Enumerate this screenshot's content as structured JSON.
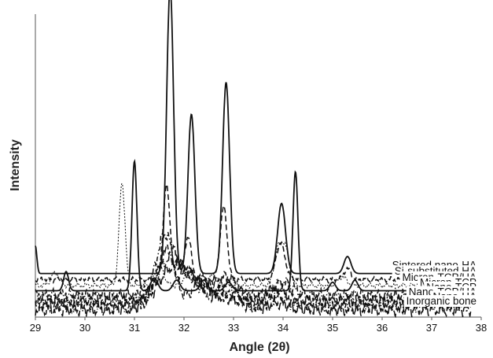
{
  "chart_data": {
    "type": "line",
    "title": "",
    "xlabel": "Angle (2θ)",
    "ylabel": "Intensity",
    "xlim": [
      29,
      38
    ],
    "x_ticks": [
      "29",
      "30",
      "31",
      "32",
      "33",
      "34",
      "35",
      "36",
      "37",
      "38"
    ],
    "y_ticks_shown": false,
    "y_units": "arbitrary (stacked, offset traces)",
    "grid": false,
    "legend": "none (labels printed on traces)",
    "series": [
      {
        "name": "Sintered nano-HA",
        "style": "solid",
        "baseline": 1.68,
        "peaks": [
          [
            29.0,
            1.3,
            0.03
          ],
          [
            31.72,
            13.5,
            0.07
          ],
          [
            32.15,
            7.5,
            0.07
          ],
          [
            32.85,
            9.0,
            0.07
          ],
          [
            33.97,
            3.3,
            0.08
          ],
          [
            35.3,
            0.8,
            0.07
          ]
        ]
      },
      {
        "name": "Si-substituted HA",
        "style": "dashed",
        "baseline": 1.4,
        "peaks": [
          [
            31.65,
            4.4,
            0.07
          ],
          [
            32.08,
            2.0,
            0.07
          ],
          [
            32.8,
            3.4,
            0.07
          ],
          [
            33.95,
            1.7,
            0.09
          ],
          [
            35.3,
            0.5,
            0.07
          ]
        ]
      },
      {
        "name": "Micron-TCP/HA",
        "style": "dotted",
        "baseline": 1.12,
        "peaks": [
          [
            29.4,
            0.6,
            0.08
          ],
          [
            30.75,
            4.8,
            0.06
          ],
          [
            31.5,
            0.9,
            0.09
          ],
          [
            32.1,
            0.7,
            0.09
          ],
          [
            32.6,
            0.5,
            0.09
          ],
          [
            33.9,
            1.6,
            0.08
          ],
          [
            34.05,
            1.6,
            0.08
          ],
          [
            35.2,
            0.4,
            0.09
          ],
          [
            36.9,
            0.5,
            0.09
          ],
          [
            37.4,
            0.3,
            0.09
          ]
        ]
      },
      {
        "name": "Micron-TCP",
        "style": "solid",
        "baseline": 0.87,
        "peaks": [
          [
            29.62,
            0.9,
            0.05
          ],
          [
            31.0,
            6.1,
            0.05
          ],
          [
            31.4,
            0.6,
            0.07
          ],
          [
            31.85,
            0.5,
            0.07
          ],
          [
            32.4,
            0.5,
            0.07
          ],
          [
            32.9,
            0.4,
            0.07
          ],
          [
            34.25,
            5.6,
            0.05
          ],
          [
            35.0,
            0.4,
            0.06
          ],
          [
            35.45,
            0.5,
            0.06
          ],
          [
            37.1,
            0.3,
            0.06
          ]
        ]
      },
      {
        "name": "Nano-TCP",
        "style": "dash-dot",
        "baseline": 0.64,
        "peaks": [
          [
            31.55,
            2.0,
            0.15
          ],
          [
            31.7,
            1.4,
            0.12
          ],
          [
            32.4,
            0.8,
            0.15
          ],
          [
            34.0,
            0.6,
            0.2
          ]
        ]
      },
      {
        "name": "Nano-TCP/HA",
        "style": "dashed",
        "baseline": 0.42,
        "peaks": [
          [
            31.7,
            2.4,
            0.22
          ],
          [
            32.2,
            0.9,
            0.2
          ],
          [
            32.85,
            1.1,
            0.22
          ],
          [
            33.9,
            0.5,
            0.18
          ]
        ]
      },
      {
        "name": "Nano-HA",
        "style": "dash-dot-dot",
        "baseline": 0.21,
        "peaks": [
          [
            31.7,
            2.1,
            0.25
          ],
          [
            32.2,
            0.9,
            0.2
          ],
          [
            32.85,
            1.0,
            0.2
          ],
          [
            33.9,
            0.4,
            0.15
          ]
        ]
      },
      {
        "name": "Inorganic bone",
        "style": "long-dash",
        "baseline": 0.0,
        "peaks": [
          [
            31.8,
            2.0,
            0.32
          ],
          [
            32.3,
            0.7,
            0.25
          ],
          [
            32.9,
            0.5,
            0.25
          ],
          [
            33.9,
            0.3,
            0.2
          ]
        ]
      }
    ]
  }
}
